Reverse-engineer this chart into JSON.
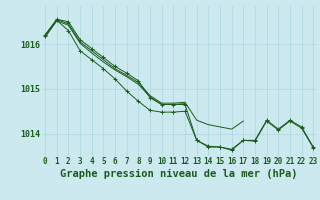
{
  "title": "Graphe pression niveau de la mer (hPa)",
  "xlabel_hours": [
    0,
    1,
    2,
    3,
    4,
    5,
    6,
    7,
    8,
    9,
    10,
    11,
    12,
    13,
    14,
    15,
    16,
    17,
    18,
    19,
    20,
    21,
    22,
    23
  ],
  "line_main": [
    1016.2,
    1016.55,
    1016.5,
    1016.1,
    1015.9,
    1015.7,
    1015.5,
    1015.35,
    1015.18,
    1014.8,
    1014.65,
    1014.65,
    1014.65,
    1013.85,
    1013.7,
    1013.7,
    1013.65,
    1013.85,
    1013.85,
    1014.3,
    1014.1,
    1014.3,
    1014.15,
    1013.7
  ],
  "line_upper1": [
    1016.2,
    1016.55,
    1016.45,
    1016.05,
    1015.85,
    1015.65,
    1015.45,
    1015.3,
    1015.14,
    1014.85,
    1014.68,
    1014.68,
    1014.7,
    1014.3,
    1014.2,
    1014.15,
    1014.1,
    1014.28,
    null,
    null,
    null,
    null,
    null,
    null
  ],
  "line_upper2": [
    1016.15,
    1016.52,
    1016.42,
    1016.02,
    1015.8,
    1015.6,
    1015.42,
    1015.27,
    1015.1,
    1014.82,
    1014.65,
    1014.65,
    1014.67,
    null,
    null,
    null,
    null,
    null,
    null,
    null,
    null,
    null,
    null,
    null
  ],
  "line_lower": [
    1016.18,
    1016.53,
    1016.3,
    1015.85,
    1015.65,
    1015.45,
    1015.22,
    1014.95,
    1014.72,
    1014.52,
    1014.48,
    1014.48,
    1014.5,
    1013.85,
    1013.72,
    1013.7,
    1013.63,
    1013.85,
    1013.83,
    1014.28,
    1014.08,
    1014.28,
    1014.12,
    1013.68
  ],
  "ylim": [
    1013.5,
    1016.85
  ],
  "yticks": [
    1014,
    1015,
    1016
  ],
  "bg_color": "#cce9f0",
  "grid_color": "#aad4dc",
  "line_color": "#1a5c1a",
  "label_color": "#1a5c1a",
  "title_color": "#1a5c1a",
  "title_fontsize": 7.5,
  "tick_fontsize": 5.5
}
